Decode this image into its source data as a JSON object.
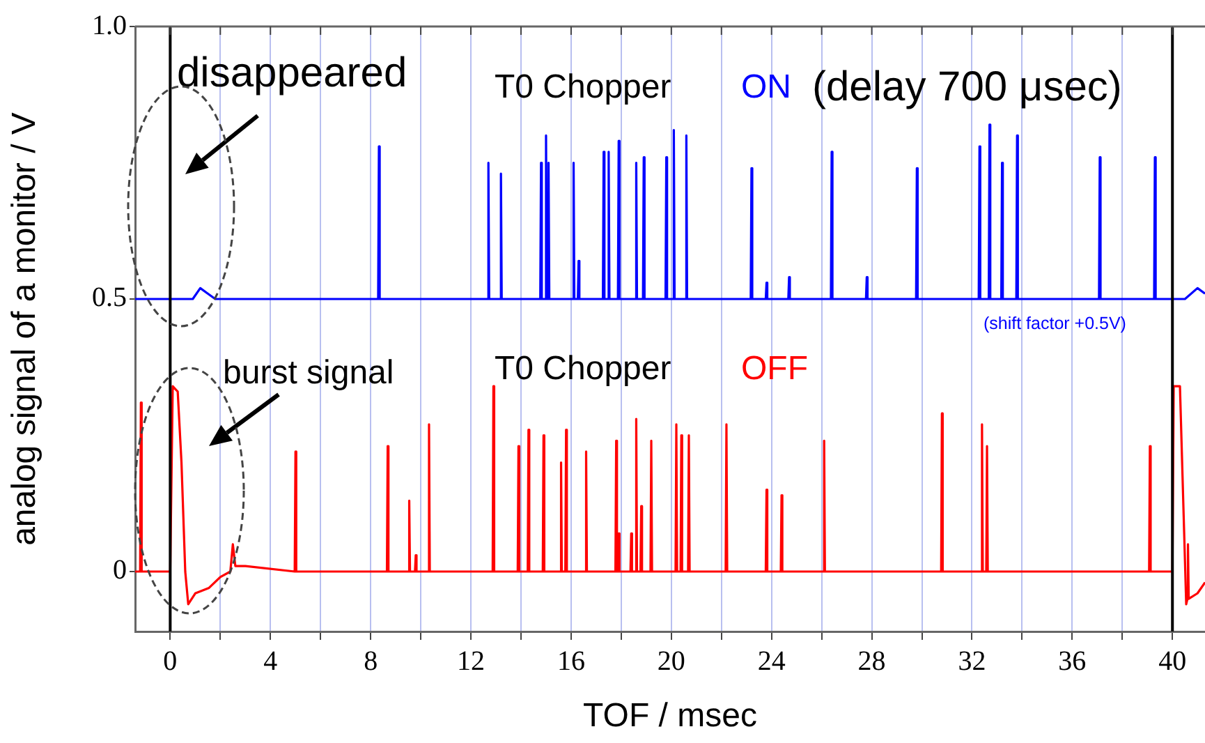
{
  "chart_data": {
    "type": "line",
    "xlabel": "TOF / msec",
    "ylabel": "analog signal of a monitor / V",
    "xlim": [
      -1.4,
      41.3
    ],
    "ylim": [
      -0.11,
      1.0
    ],
    "xticks": [
      0,
      {
        "value": 2,
        "label": null
      },
      4,
      {
        "value": 6,
        "label": null
      },
      8,
      {
        "value": 10,
        "label": null
      },
      12,
      {
        "value": 14,
        "label": null
      },
      16,
      {
        "value": 18,
        "label": null
      },
      20,
      {
        "value": 22,
        "label": null
      },
      24,
      {
        "value": 26,
        "label": null
      },
      28,
      {
        "value": 30,
        "label": null
      },
      32,
      {
        "value": 34,
        "label": null
      },
      36,
      {
        "value": 38,
        "label": null
      },
      40
    ],
    "yticks": [
      0,
      0.5,
      {
        "value": 1,
        "label": "1.0"
      }
    ],
    "grid": "x",
    "legend": false,
    "marker": "none",
    "line_style": "solid",
    "ref_lines": [
      {
        "axis": "x",
        "value": 0,
        "color": "#000000"
      },
      {
        "axis": "x",
        "value": 40,
        "color": "#000000"
      }
    ],
    "annotations": [
      "T0 Chopper",
      "T0 Chopper",
      "(delay 700 μsec)",
      "(shift factor +0.5V)",
      "disappeared",
      "burst signal"
    ],
    "series": [
      {
        "name": "ON",
        "color": "#0000ff",
        "x": [
          -1.4,
          0.9,
          1.2,
          1.5,
          1.8,
          8.3,
          8.33,
          8.36,
          12.67,
          12.7,
          12.73,
          13.17,
          13.2,
          13.23,
          14.77,
          14.8,
          14.83,
          14.97,
          15.0,
          15.03,
          15.07,
          15.1,
          15.13,
          16.07,
          16.1,
          16.13,
          16.27,
          16.3,
          16.33,
          17.27,
          17.3,
          17.33,
          17.47,
          17.5,
          17.53,
          17.87,
          17.9,
          17.93,
          18.57,
          18.6,
          18.63,
          18.87,
          18.9,
          18.93,
          19.77,
          19.8,
          19.83,
          20.07,
          20.1,
          20.13,
          20.57,
          20.6,
          20.63,
          23.17,
          23.2,
          23.23,
          23.77,
          23.8,
          23.83,
          24.67,
          24.7,
          24.73,
          26.37,
          26.4,
          26.43,
          27.77,
          27.8,
          27.83,
          29.77,
          29.8,
          29.83,
          32.27,
          32.3,
          32.33,
          32.67,
          32.7,
          32.73,
          33.17,
          33.2,
          33.23,
          33.77,
          33.8,
          33.83,
          37.07,
          37.1,
          37.13,
          39.27,
          39.3,
          39.33,
          40.5,
          41.0,
          41.3
        ],
        "values": [
          0.5,
          0.5,
          0.52,
          0.51,
          0.5,
          0.5,
          0.78,
          0.5,
          0.5,
          0.75,
          0.5,
          0.5,
          0.73,
          0.5,
          0.5,
          0.75,
          0.5,
          0.5,
          0.8,
          0.5,
          0.5,
          0.75,
          0.5,
          0.5,
          0.75,
          0.5,
          0.5,
          0.57,
          0.5,
          0.5,
          0.77,
          0.5,
          0.5,
          0.77,
          0.5,
          0.5,
          0.79,
          0.5,
          0.5,
          0.75,
          0.5,
          0.5,
          0.76,
          0.5,
          0.5,
          0.76,
          0.5,
          0.5,
          0.81,
          0.5,
          0.5,
          0.8,
          0.5,
          0.5,
          0.74,
          0.5,
          0.5,
          0.53,
          0.5,
          0.5,
          0.54,
          0.5,
          0.5,
          0.77,
          0.5,
          0.5,
          0.54,
          0.5,
          0.5,
          0.74,
          0.5,
          0.5,
          0.78,
          0.5,
          0.5,
          0.82,
          0.5,
          0.5,
          0.75,
          0.5,
          0.5,
          0.8,
          0.5,
          0.5,
          0.76,
          0.5,
          0.5,
          0.76,
          0.5,
          0.5,
          0.52,
          0.51
        ]
      },
      {
        "name": "OFF",
        "color": "#ff0000",
        "x": [
          -1.4,
          -1.2,
          -1.17,
          -1.14,
          0.0,
          0.1,
          0.3,
          0.45,
          0.6,
          0.72,
          1.0,
          1.55,
          2.0,
          2.4,
          2.5,
          2.6,
          3.0,
          4.97,
          5.0,
          5.03,
          8.65,
          8.68,
          8.71,
          9.51,
          9.54,
          9.57,
          9.77,
          9.8,
          9.83,
          10.3,
          10.33,
          10.36,
          12.87,
          12.9,
          12.93,
          13.87,
          13.9,
          13.93,
          14.27,
          14.3,
          14.33,
          14.87,
          14.9,
          14.93,
          15.57,
          15.6,
          15.63,
          15.77,
          15.8,
          15.83,
          16.57,
          16.6,
          16.63,
          17.77,
          17.8,
          17.83,
          17.87,
          17.9,
          17.93,
          18.37,
          18.4,
          18.43,
          18.57,
          18.6,
          18.63,
          18.77,
          18.8,
          18.83,
          19.17,
          19.2,
          19.23,
          20.17,
          20.2,
          20.23,
          20.37,
          20.4,
          20.43,
          20.67,
          20.7,
          20.73,
          22.17,
          22.2,
          22.23,
          23.77,
          23.8,
          23.83,
          24.37,
          24.4,
          24.43,
          26.07,
          26.1,
          26.13,
          30.77,
          30.8,
          30.83,
          32.37,
          32.4,
          32.43,
          32.57,
          32.6,
          32.63,
          39.07,
          39.1,
          39.13,
          40.0,
          40.05,
          40.3,
          40.45,
          40.55,
          40.6,
          40.62,
          40.65,
          41.0,
          41.3
        ],
        "values": [
          0,
          0,
          0.31,
          0,
          0,
          0.34,
          0.33,
          0.2,
          0,
          -0.06,
          -0.04,
          -0.03,
          -0.01,
          0,
          0.05,
          0.01,
          0.01,
          0,
          0.22,
          0,
          0,
          0.23,
          0,
          0,
          0.13,
          0,
          0,
          0.03,
          0,
          0,
          0.27,
          0,
          0,
          0.34,
          0,
          0,
          0.23,
          0,
          0,
          0.26,
          0,
          0,
          0.25,
          0,
          0,
          0.2,
          0,
          0,
          0.26,
          0,
          0,
          0.22,
          0,
          0,
          0.24,
          0,
          0,
          0.07,
          0,
          0,
          0.07,
          0,
          0,
          0.28,
          0,
          0,
          0.12,
          0,
          0,
          0.24,
          0,
          0,
          0.27,
          0,
          0,
          0.25,
          0,
          0,
          0.25,
          0,
          0,
          0.27,
          0,
          0,
          0.15,
          0,
          0,
          0.14,
          0,
          0,
          0.24,
          0,
          0,
          0.29,
          0,
          0,
          0.27,
          0,
          0,
          0.23,
          0,
          0,
          0.23,
          0,
          0,
          0.34,
          0.34,
          0.1,
          -0.06,
          -0.05,
          0.05,
          -0.05,
          -0.04,
          -0.02
        ]
      }
    ]
  }
}
